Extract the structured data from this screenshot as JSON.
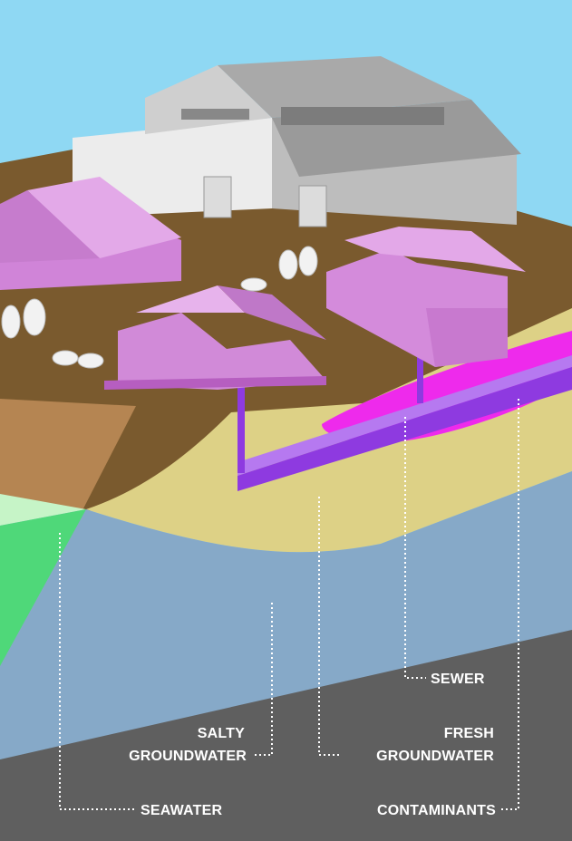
{
  "labels": {
    "sewer": "SEWER",
    "salty_line1": "SALTY",
    "salty_line2": "GROUNDWATER",
    "fresh_line1": "FRESH",
    "fresh_line2": "GROUNDWATER",
    "seawater": "SEAWATER",
    "contaminants": "CONTAMINANTS"
  },
  "colors": {
    "sky": "#8fd8f3",
    "ground_surface": "#7a5a2e",
    "soil_cross_section": "#b58552",
    "fresh_groundwater": "#ddd186",
    "salty_groundwater": "#86a9c8",
    "bedrock": "#5f5f5f",
    "seawater_green": "#4fd879",
    "seawater_light": "#c6f4c7",
    "houses": "#dd8fe4",
    "sewer_pipe": "#8e3ae0",
    "contaminant_plume": "#ee2aec",
    "warehouse": "#d9d9d9"
  }
}
